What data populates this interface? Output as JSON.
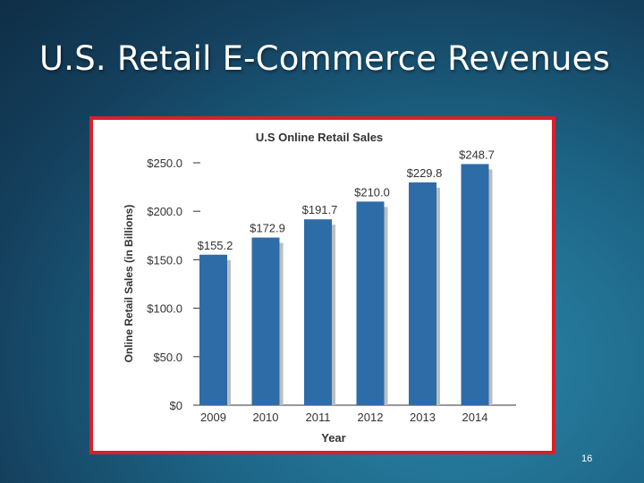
{
  "slide": {
    "title": "U.S. Retail E-Commerce Revenues",
    "page_number": "16"
  },
  "colors": {
    "bar": "#2e6ca8",
    "bar_shadow": "#b9bec3",
    "frame_border": "#d8202a"
  },
  "chart_data": {
    "type": "bar",
    "title": "U.S Online Retail Sales",
    "xlabel": "Year",
    "ylabel": "Online Retail Sales (in Billions)",
    "categories": [
      "2009",
      "2010",
      "2011",
      "2012",
      "2013",
      "2014"
    ],
    "values": [
      155.2,
      172.9,
      191.7,
      210.0,
      229.8,
      248.7
    ],
    "data_labels": [
      "$155.2",
      "$172.9",
      "$191.7",
      "$210.0",
      "$229.8",
      "$248.7"
    ],
    "ylim": [
      0,
      250
    ],
    "yticks": [
      0,
      50,
      100,
      150,
      200,
      250
    ],
    "ytick_labels": [
      "$0",
      "$50.0",
      "$100.0",
      "$150.0",
      "$200.0",
      "$250.0"
    ],
    "grid": false,
    "legend": "none"
  }
}
